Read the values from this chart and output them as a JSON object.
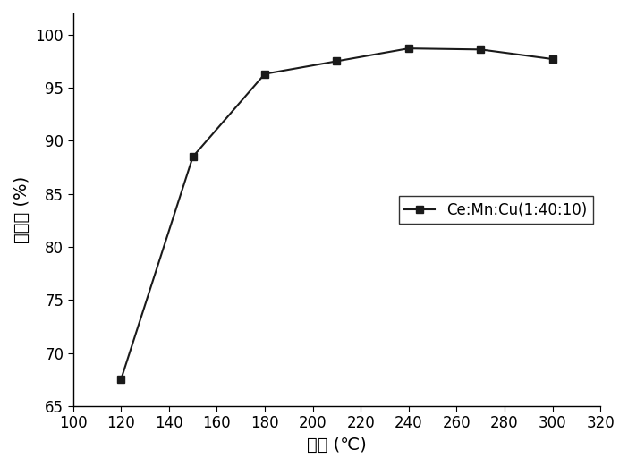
{
  "x": [
    120,
    150,
    180,
    210,
    240,
    270,
    300
  ],
  "y": [
    67.5,
    88.5,
    96.3,
    97.5,
    98.7,
    98.6,
    97.7
  ],
  "line_color": "#1a1a1a",
  "marker": "s",
  "marker_color": "#1a1a1a",
  "marker_size": 6,
  "line_width": 1.5,
  "xlabel": "温度 (℃)",
  "ylabel": "脱硒率 (%)",
  "xlim": [
    100,
    320
  ],
  "ylim": [
    65,
    102
  ],
  "xticks": [
    100,
    120,
    140,
    160,
    180,
    200,
    220,
    240,
    260,
    280,
    300,
    320
  ],
  "yticks": [
    65,
    70,
    75,
    80,
    85,
    90,
    95,
    100
  ],
  "legend_label": "Ce:Mn:Cu(1:40:10)",
  "legend_loc": "center right",
  "background_color": "#ffffff",
  "label_fontsize": 14,
  "tick_fontsize": 12,
  "legend_fontsize": 12
}
